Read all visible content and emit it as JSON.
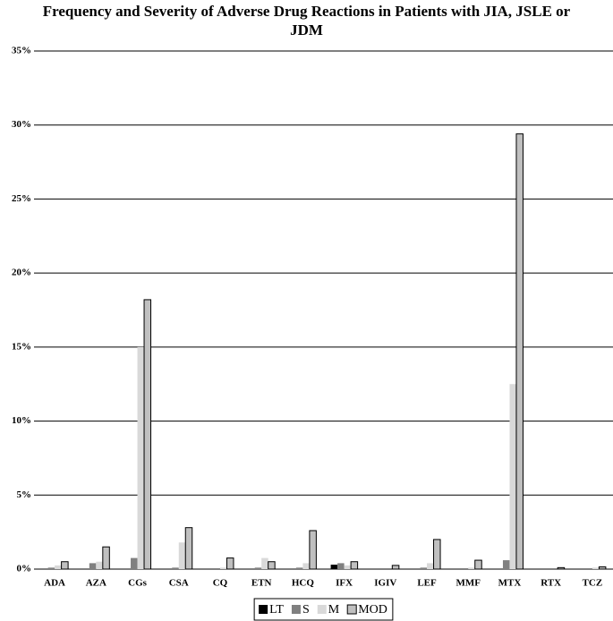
{
  "chart_data": {
    "type": "bar",
    "title": "Frequency and Severity of Adverse Drug Reactions in Patients with JIA, JSLE or JDM",
    "categories": [
      "ADA",
      "AZA",
      "CGs",
      "CSA",
      "CQ",
      "ETN",
      "HCQ",
      "IFX",
      "IGIV",
      "LEF",
      "MMF",
      "MTX",
      "RTX",
      "TCZ"
    ],
    "series": [
      {
        "name": "LT",
        "color": "#000000",
        "values": [
          0,
          0,
          0,
          0,
          0,
          0,
          0,
          0.3,
          0,
          0,
          0,
          0,
          0,
          0
        ]
      },
      {
        "name": "S",
        "color": "#808080",
        "values": [
          0.1,
          0.4,
          0.75,
          0.1,
          0,
          0.1,
          0.1,
          0.4,
          0,
          0.1,
          0,
          0.6,
          0,
          0
        ]
      },
      {
        "name": "M",
        "color": "#d9d9d9",
        "values": [
          0.25,
          0.5,
          15.0,
          1.8,
          0.1,
          0.75,
          0.4,
          0.25,
          0,
          0.4,
          0.1,
          12.5,
          0,
          0.1
        ]
      },
      {
        "name": "MOD",
        "color": "#c0c0c0",
        "values": [
          0.5,
          1.5,
          18.2,
          2.8,
          0.75,
          0.5,
          2.6,
          0.5,
          0.25,
          2.0,
          0.6,
          29.4,
          0.1,
          0.15
        ]
      }
    ],
    "ylim": [
      0,
      35
    ],
    "yticks": [
      {
        "value": 0,
        "label": "0%"
      },
      {
        "value": 5,
        "label": "5%"
      },
      {
        "value": 10,
        "label": "10%"
      },
      {
        "value": 15,
        "label": "15%"
      },
      {
        "value": 20,
        "label": "20%"
      },
      {
        "value": 25,
        "label": "25%"
      },
      {
        "value": 30,
        "label": "30%"
      },
      {
        "value": 35,
        "label": "35%"
      }
    ],
    "grid": true,
    "legend": "bottom"
  }
}
